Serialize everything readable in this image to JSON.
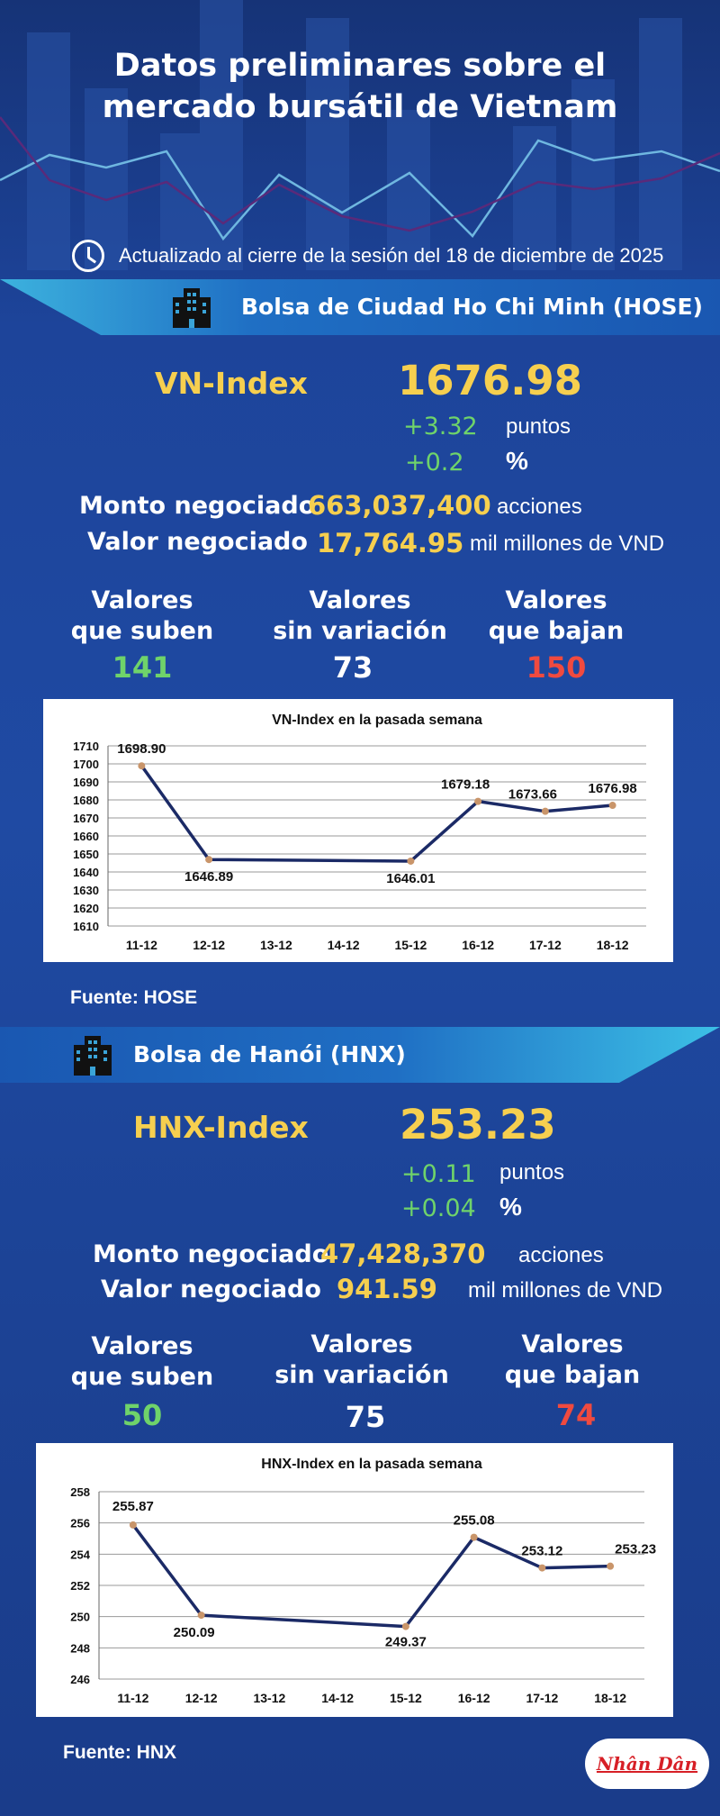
{
  "header": {
    "title_line1": "Datos preliminares sobre el",
    "title_line2": "mercado bursátil de Vietnam",
    "updated": "Actualizado al cierre de la sesión del 18 de diciembre de 2025"
  },
  "hose": {
    "banner": "Bolsa de Ciudad Ho Chi Minh (HOSE)",
    "index_name": "VN-Index",
    "index_value": "1676.98",
    "change_points": "+3.32",
    "points_label": "puntos",
    "change_pct": "+0.2",
    "pct_label": "%",
    "volume_label": "Monto negociado",
    "volume_value": "663,037,400",
    "volume_unit": "acciones",
    "value_label": "Valor negociado",
    "value_value": "17,764.95",
    "value_unit": "mil millones de VND",
    "up_label_1": "Valores",
    "up_label_2": "que suben",
    "up_count": "141",
    "flat_label_1": "Valores",
    "flat_label_2": "sin variación",
    "flat_count": "73",
    "down_label_1": "Valores",
    "down_label_2": "que bajan",
    "down_count": "150",
    "source": "Fuente: HOSE"
  },
  "hnx": {
    "banner": "Bolsa de Hanói (HNX)",
    "index_name": "HNX-Index",
    "index_value": "253.23",
    "change_points": "+0.11",
    "points_label": "puntos",
    "change_pct": "+0.04",
    "pct_label": "%",
    "volume_label": "Monto negociado",
    "volume_value": "47,428,370",
    "volume_unit": "acciones",
    "value_label": "Valor negociado",
    "value_value": "941.59",
    "value_unit": "mil millones de VND",
    "up_label_1": "Valores",
    "up_label_2": "que suben",
    "up_count": "50",
    "flat_label_1": "Valores",
    "flat_label_2": "sin variación",
    "flat_count": "75",
    "down_label_1": "Valores",
    "down_label_2": "que bajan",
    "down_count": "74",
    "source": "Fuente:  HNX"
  },
  "logo_text": "Nhân Dân",
  "colors": {
    "accent_yellow": "#f6cf4f",
    "up_green": "#6fd36a",
    "down_red": "#f04a3f",
    "line_navy": "#1b2a66",
    "marker": "#c9956a"
  },
  "chart_data": [
    {
      "type": "line",
      "title": "VN-Index en la pasada semana",
      "x": [
        "11-12",
        "12-12",
        "13-12",
        "14-12",
        "15-12",
        "16-12",
        "17-12",
        "18-12"
      ],
      "series": [
        {
          "values": [
            1698.9,
            1646.89,
            null,
            null,
            1646.01,
            1679.18,
            1673.66,
            1676.98
          ]
        }
      ],
      "data_labels": [
        "1698.90",
        "1646.89",
        "",
        "",
        "1646.01",
        "1679.18",
        "1673.66",
        "1676.98"
      ],
      "yticks": [
        1610,
        1620,
        1630,
        1640,
        1650,
        1660,
        1670,
        1680,
        1690,
        1700,
        1710
      ],
      "ylim": [
        1610,
        1710
      ],
      "grid": true
    },
    {
      "type": "line",
      "title": "HNX-Index en la pasada semana",
      "x": [
        "11-12",
        "12-12",
        "13-12",
        "14-12",
        "15-12",
        "16-12",
        "17-12",
        "18-12"
      ],
      "series": [
        {
          "values": [
            255.87,
            250.09,
            null,
            null,
            249.37,
            255.08,
            253.12,
            253.23
          ]
        }
      ],
      "data_labels": [
        "255.87",
        "250.09",
        "",
        "",
        "249.37",
        "255.08",
        "253.12",
        "253.23"
      ],
      "yticks": [
        246,
        248,
        250,
        252,
        254,
        256,
        258
      ],
      "ylim": [
        246,
        258
      ],
      "grid": true
    }
  ]
}
